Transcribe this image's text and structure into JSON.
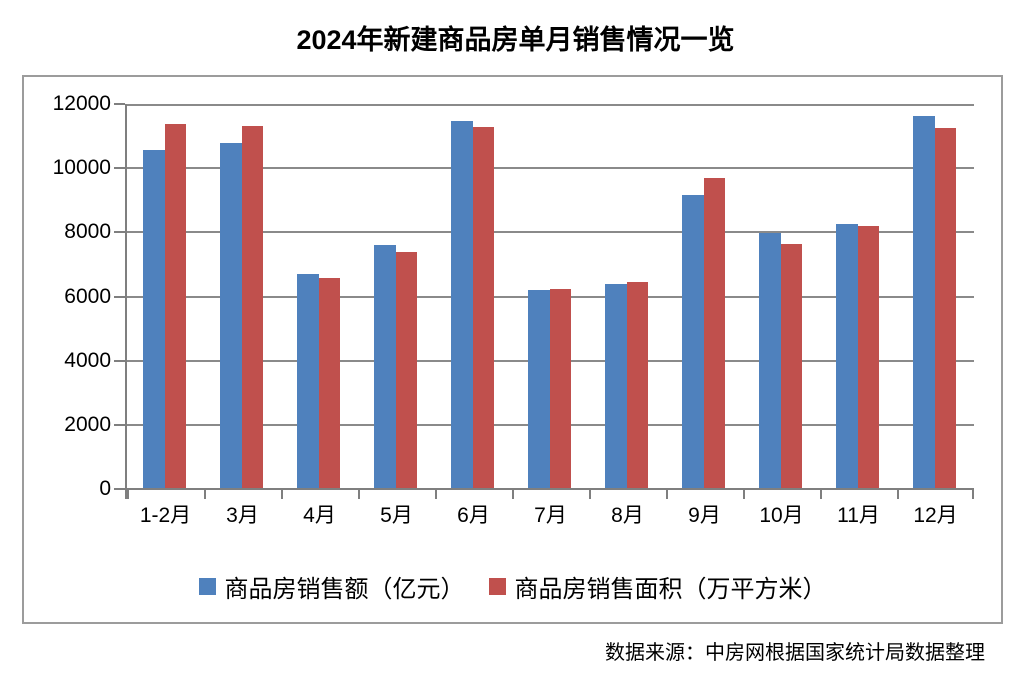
{
  "title": "2024年新建商品房单月销售情况一览",
  "source_note": "数据来源：中房网根据国家统计局数据整理",
  "colors": {
    "series_amount": "#4F81BD",
    "series_area": "#C0504D",
    "gridline": "#8A8A8A",
    "axis": "#7F7F7F",
    "frame_border": "#9C9C9C",
    "text": "#000000"
  },
  "chart_data": {
    "type": "bar",
    "title": "2024年新建商品房单月销售情况一览",
    "categories": [
      "1-2月",
      "3月",
      "4月",
      "5月",
      "6月",
      "7月",
      "8月",
      "9月",
      "10月",
      "11月",
      "12月"
    ],
    "series": [
      {
        "name": "商品房销售额（亿元）",
        "color": "#4F81BD",
        "values": [
          10566,
          10789,
          6712,
          7598,
          11468,
          6197,
          6393,
          9157,
          7975,
          8270,
          11625
        ]
      },
      {
        "name": "商品房销售面积（万平方米）",
        "color": "#C0504D",
        "values": [
          11369,
          11299,
          6584,
          7390,
          11274,
          6233,
          6453,
          9682,
          7646,
          8188,
          11267
        ]
      }
    ],
    "xlabel": "",
    "ylabel": "",
    "ylim": [
      0,
      12000
    ],
    "yticks": [
      0,
      2000,
      4000,
      6000,
      8000,
      10000,
      12000
    ],
    "grid": true,
    "legend_position": "bottom",
    "source_note": "数据来源：中房网根据国家统计局数据整理"
  }
}
